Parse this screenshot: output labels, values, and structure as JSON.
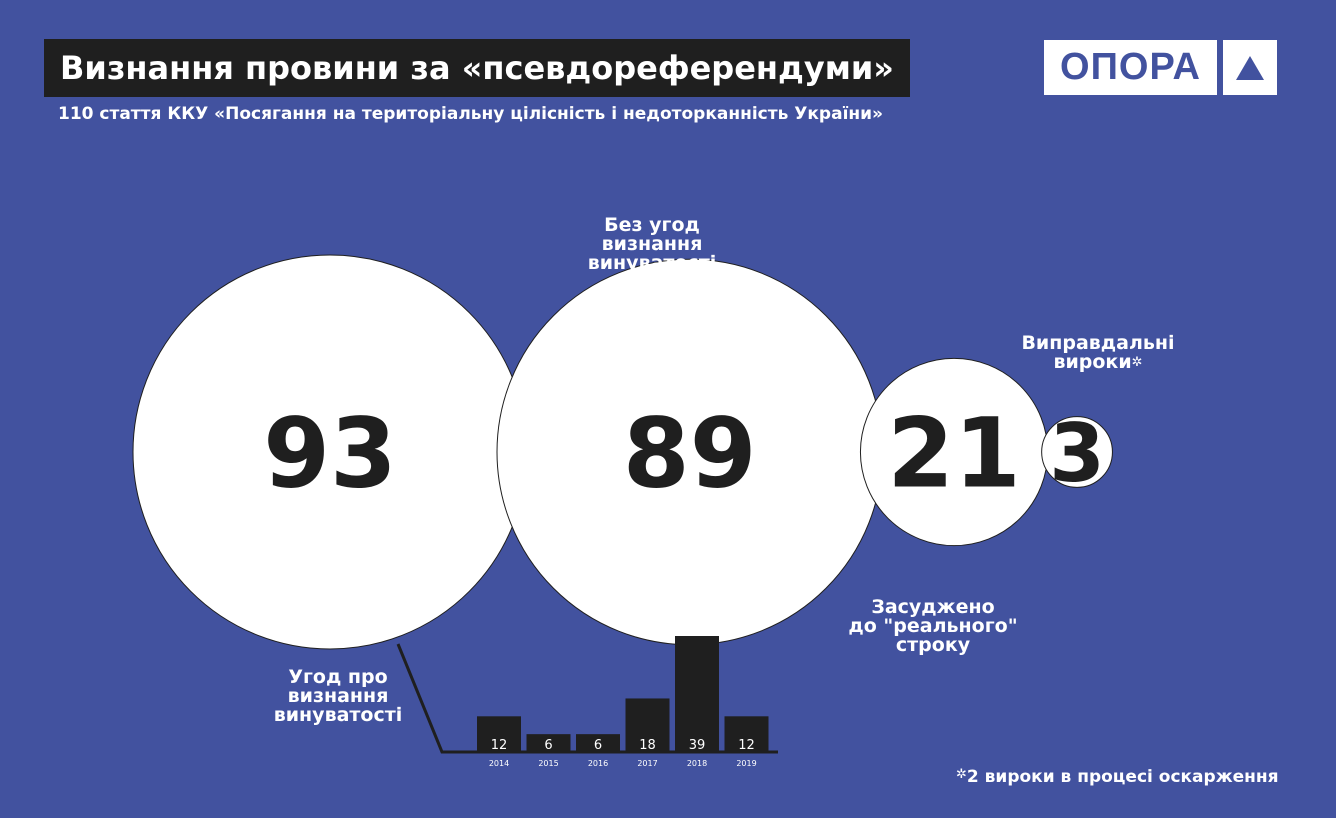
{
  "header": {
    "title": "Визнання провини за «псевдореферендуми»",
    "subtitle": "110 стаття ККУ «Посягання на територіальну цілісність і недоторканність України»",
    "logo_text": "ОПОРА"
  },
  "colors": {
    "background": "#42529f",
    "circle": "#ffffff",
    "bar": "#1f1f1f",
    "text_dark": "#1f1f1f"
  },
  "chart_data": [
    {
      "type": "bubble",
      "values": [
        93,
        89,
        21,
        3
      ],
      "labels": [
        "Угод про визнання винуватості",
        "Без угод визнання винуватості",
        "Засуджено до \"реального\" строку",
        "Виправдальні вироки"
      ]
    },
    {
      "type": "bar",
      "categories": [
        "2014",
        "2015",
        "2016",
        "2017",
        "2018",
        "2019"
      ],
      "values": [
        12,
        6,
        6,
        18,
        39,
        12
      ],
      "ylim": [
        0,
        39
      ]
    }
  ],
  "labels": {
    "agreements": [
      "Угод про",
      "визнання",
      "винуватості"
    ],
    "no_agreements": [
      "Без угод",
      "визнання",
      "винуватості"
    ],
    "real_term": [
      "Засуджено",
      "до \"реального\"",
      "строку"
    ],
    "acquittals": [
      "Виправдальні",
      "вироки"
    ]
  },
  "footnote": {
    "marker": "✲",
    "text": "2  вироки в процесі оскарження"
  }
}
